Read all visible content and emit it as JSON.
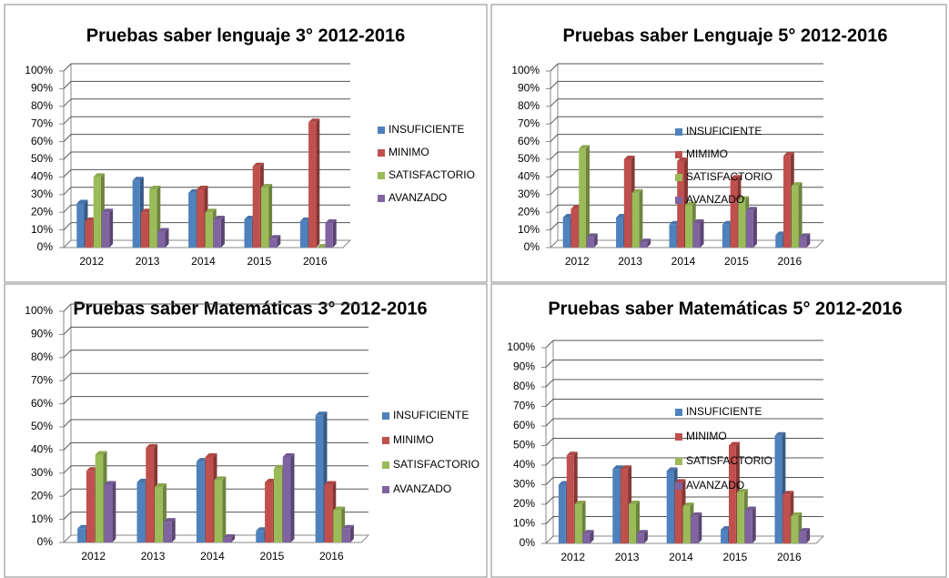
{
  "chart_data": [
    {
      "type": "bar",
      "title": "Pruebas saber lenguaje 3° 2012-2016",
      "categories": [
        "2012",
        "2013",
        "2014",
        "2015",
        "2016"
      ],
      "series": [
        {
          "name": "INSUFICIENTE",
          "color": "#4f81bd",
          "values": [
            25,
            38,
            31,
            16,
            15
          ]
        },
        {
          "name": "MINIMO",
          "color": "#c0504d",
          "values": [
            15,
            20,
            33,
            46,
            71
          ]
        },
        {
          "name": "SATISFACTORIO",
          "color": "#9bbb59",
          "values": [
            40,
            33,
            20,
            34,
            0
          ]
        },
        {
          "name": "AVANZADO",
          "color": "#8064a2",
          "values": [
            20,
            9,
            16,
            5,
            14
          ]
        }
      ],
      "ylim": [
        0,
        100
      ],
      "yticks": [
        {
          "value": 0,
          "label": "0%"
        },
        {
          "value": 10,
          "label": "10%"
        },
        {
          "value": 20,
          "label": "20%"
        },
        {
          "value": 30,
          "label": "30%"
        },
        {
          "value": 40,
          "label": "40%"
        },
        {
          "value": 50,
          "label": "50%"
        },
        {
          "value": 60,
          "label": "60%"
        },
        {
          "value": 70,
          "label": "70%"
        },
        {
          "value": 80,
          "label": "80%"
        },
        {
          "value": 90,
          "label": "90%"
        },
        {
          "value": 100,
          "label": "100%"
        }
      ],
      "grid": true,
      "legend": "right"
    },
    {
      "type": "bar",
      "title": "Pruebas saber Lenguaje 5° 2012-2016",
      "categories": [
        "2012",
        "2013",
        "2014",
        "2015",
        "2016"
      ],
      "series": [
        {
          "name": "INSUFICIENTE",
          "color": "#4f81bd",
          "values": [
            17,
            17,
            13,
            13,
            7
          ]
        },
        {
          "name": "MIMIMO",
          "color": "#c0504d",
          "values": [
            22,
            50,
            49,
            39,
            52
          ]
        },
        {
          "name": "SATISFACTORIO",
          "color": "#9bbb59",
          "values": [
            56,
            31,
            24,
            27,
            35
          ]
        },
        {
          "name": "AVANZADO",
          "color": "#8064a2",
          "values": [
            6,
            3,
            14,
            21,
            6
          ]
        }
      ],
      "ylim": [
        0,
        100
      ],
      "yticks": [
        {
          "value": 0,
          "label": "0%"
        },
        {
          "value": 10,
          "label": "10%"
        },
        {
          "value": 20,
          "label": "20%"
        },
        {
          "value": 30,
          "label": "30%"
        },
        {
          "value": 40,
          "label": "40%"
        },
        {
          "value": 50,
          "label": "50%"
        },
        {
          "value": 60,
          "label": "60%"
        },
        {
          "value": 70,
          "label": "70%"
        },
        {
          "value": 80,
          "label": "80%"
        },
        {
          "value": 90,
          "label": "90%"
        },
        {
          "value": 100,
          "label": "100%"
        }
      ],
      "grid": true,
      "legend": "right"
    },
    {
      "type": "bar",
      "title": "Pruebas saber Matemáticas 3° 2012-2016",
      "categories": [
        "2012",
        "2013",
        "2014",
        "2015",
        "2016"
      ],
      "series": [
        {
          "name": "INSUFICIENTE",
          "color": "#4f81bd",
          "values": [
            6,
            26,
            35,
            5,
            55
          ]
        },
        {
          "name": "MINIMO",
          "color": "#c0504d",
          "values": [
            31,
            41,
            37,
            26,
            25
          ]
        },
        {
          "name": "SATISFACTORIO",
          "color": "#9bbb59",
          "values": [
            38,
            24,
            27,
            32,
            14
          ]
        },
        {
          "name": "AVANZADO",
          "color": "#8064a2",
          "values": [
            25,
            9,
            2,
            37,
            6
          ]
        }
      ],
      "ylim": [
        0,
        100
      ],
      "yticks": [
        {
          "value": 0,
          "label": "0%"
        },
        {
          "value": 10,
          "label": "10%"
        },
        {
          "value": 20,
          "label": "20%"
        },
        {
          "value": 30,
          "label": "30%"
        },
        {
          "value": 40,
          "label": "40%"
        },
        {
          "value": 50,
          "label": "50%"
        },
        {
          "value": 60,
          "label": "60%"
        },
        {
          "value": 70,
          "label": "70%"
        },
        {
          "value": 80,
          "label": "80%"
        },
        {
          "value": 90,
          "label": "90%"
        },
        {
          "value": 100,
          "label": "100%"
        }
      ],
      "grid": true,
      "legend": "right"
    },
    {
      "type": "bar",
      "title": "Pruebas saber Matemáticas 5° 2012-2016",
      "categories": [
        "2012",
        "2013",
        "2014",
        "2015",
        "2016"
      ],
      "series": [
        {
          "name": "INSUFICIENTE",
          "color": "#4f81bd",
          "values": [
            30,
            38,
            37,
            7,
            55
          ]
        },
        {
          "name": "MINIMO",
          "color": "#c0504d",
          "values": [
            45,
            38,
            31,
            50,
            25
          ]
        },
        {
          "name": "SATISFACTORIO",
          "color": "#9bbb59",
          "values": [
            20,
            20,
            19,
            26,
            14
          ]
        },
        {
          "name": "AVANZADO",
          "color": "#8064a2",
          "values": [
            5,
            5,
            14,
            17,
            6
          ]
        }
      ],
      "ylim": [
        0,
        100
      ],
      "yticks": [
        {
          "value": 0,
          "label": "0%"
        },
        {
          "value": 10,
          "label": "10%"
        },
        {
          "value": 20,
          "label": "20%"
        },
        {
          "value": 30,
          "label": "30%"
        },
        {
          "value": 40,
          "label": "40%"
        },
        {
          "value": 50,
          "label": "50%"
        },
        {
          "value": 60,
          "label": "60%"
        },
        {
          "value": 70,
          "label": "70%"
        },
        {
          "value": 80,
          "label": "80%"
        },
        {
          "value": 90,
          "label": "90%"
        },
        {
          "value": 100,
          "label": "100%"
        }
      ],
      "grid": true,
      "legend": "right"
    }
  ]
}
